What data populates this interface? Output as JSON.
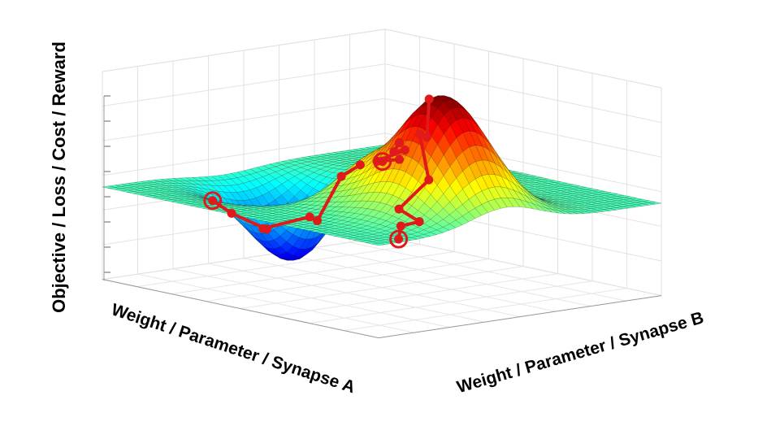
{
  "chart_data": {
    "type": "surface",
    "title": "",
    "xlabel": "Weight / Parameter / Synapse A",
    "ylabel": "Weight / Parameter / Synapse B",
    "zlabel": "Objective / Loss / Cost / Reward",
    "grid": true,
    "colormap": "jet",
    "surface": {
      "baseline": 0,
      "features": [
        {
          "kind": "peak",
          "center": [
            -1.1,
            -0.2
          ],
          "amplitude": 1.0
        },
        {
          "kind": "peak",
          "center": [
            0.1,
            -0.2
          ],
          "amplitude": 0.38
        },
        {
          "kind": "peak",
          "center": [
            0.3,
            0.7
          ],
          "amplitude": 0.35
        },
        {
          "kind": "valley",
          "center": [
            0.9,
            -0.3
          ],
          "amplitude": -0.75
        }
      ]
    },
    "paths": [
      {
        "start": [
          -1.8,
          -1.5
        ],
        "end": [
          -1.05,
          -0.3
        ]
      },
      {
        "start": [
          1.2,
          -1.2
        ],
        "end": [
          0.05,
          -0.2
        ]
      },
      {
        "start": [
          1.3,
          1.3
        ],
        "end": [
          0.3,
          0.6
        ]
      }
    ]
  }
}
